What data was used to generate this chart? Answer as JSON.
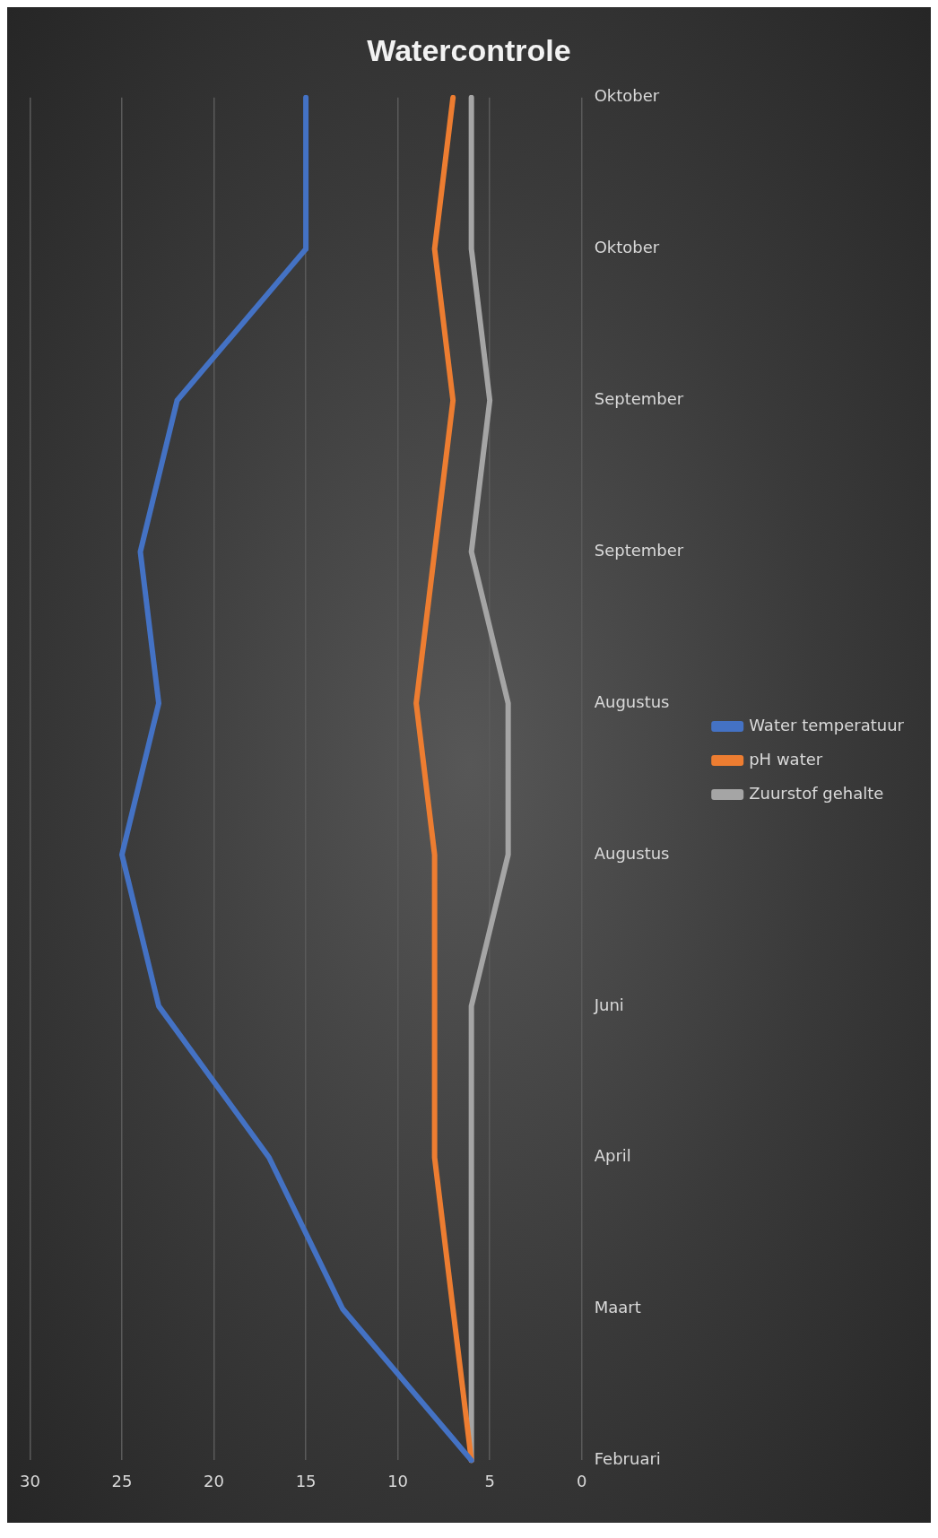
{
  "chart_data": {
    "type": "line",
    "title": "Watercontrole",
    "categories": [
      "Oktober",
      "Oktober",
      "September",
      "September",
      "Augustus",
      "Augustus",
      "Juni",
      "April",
      "Maart",
      "Februari"
    ],
    "series": [
      {
        "name": "Water temperatuur",
        "color": "#4472c4",
        "values": [
          15,
          15,
          22,
          24,
          23,
          25,
          23,
          17,
          13,
          6
        ]
      },
      {
        "name": "pH water",
        "color": "#ed7d31",
        "values": [
          7,
          8,
          7,
          8,
          9,
          8,
          8,
          8,
          7,
          6
        ]
      },
      {
        "name": "Zuurstof gehalte",
        "color": "#a5a5a5",
        "values": [
          6,
          6,
          5,
          6,
          4,
          4,
          6,
          6,
          6,
          6
        ]
      }
    ],
    "orientation": "horizontal",
    "xlim": [
      30,
      0
    ],
    "xticks": [
      30,
      25,
      20,
      15,
      10,
      5,
      0
    ],
    "grid": "x",
    "legend": "right",
    "marker": "none",
    "line_style": "solid"
  }
}
